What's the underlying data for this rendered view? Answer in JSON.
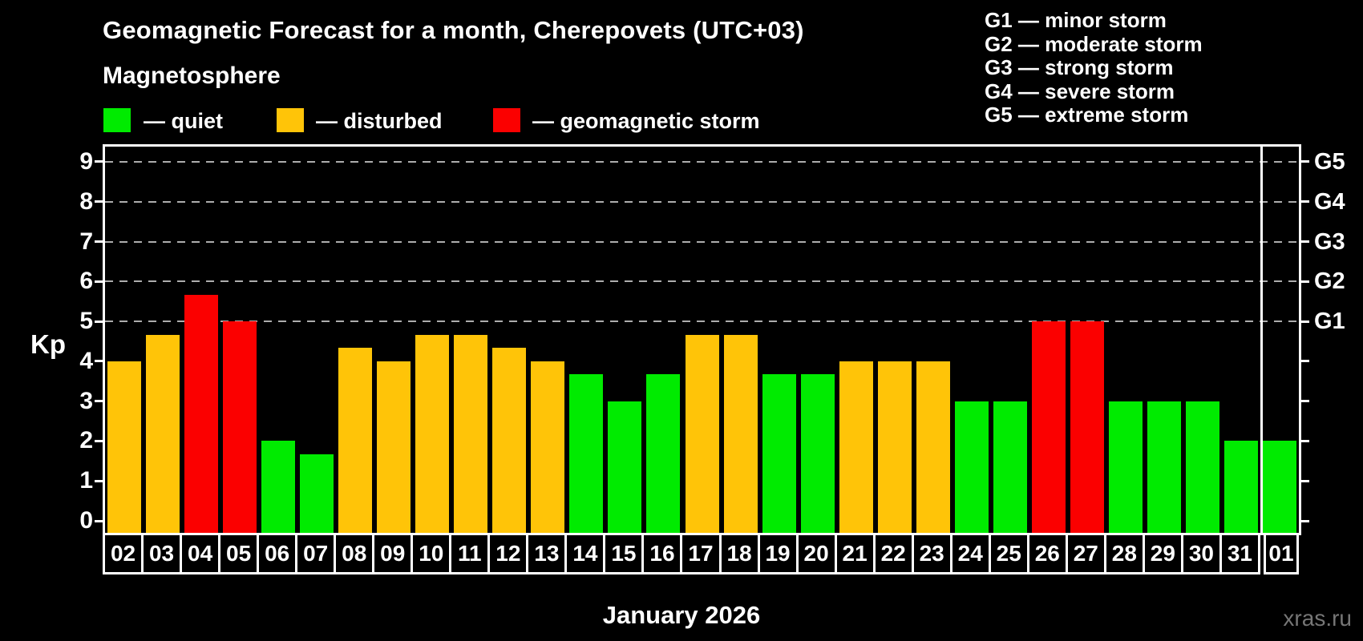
{
  "title": "Geomagnetic Forecast for a month, Cherepovets (UTC+03)",
  "subtitle": "Magnetosphere",
  "legend": {
    "quiet_label": "— quiet",
    "disturbed_label": "— disturbed",
    "storm_label": "— geomagnetic storm"
  },
  "g_scale_legend": [
    "G1 — minor storm",
    "G2 — moderate storm",
    "G3 — strong storm",
    "G4 — severe storm",
    "G5 — extreme storm"
  ],
  "axis": {
    "y_label": "Kp",
    "y_ticks": [
      0,
      1,
      2,
      3,
      4,
      5,
      6,
      7,
      8,
      9
    ],
    "right_labels": [
      {
        "kp": 5,
        "label": "G1"
      },
      {
        "kp": 6,
        "label": "G2"
      },
      {
        "kp": 7,
        "label": "G3"
      },
      {
        "kp": 8,
        "label": "G4"
      },
      {
        "kp": 9,
        "label": "G5"
      }
    ]
  },
  "x_label": "January 2026",
  "watermark": "xras.ru",
  "colors": {
    "quiet": "#00EB00",
    "disturbed": "#FFC408",
    "storm": "#FB0000",
    "grid": "#ADADAD",
    "text": "#FFFFFF",
    "watermark": "#767676",
    "background": "#000000"
  },
  "chart_data": {
    "type": "bar",
    "title": "Geomagnetic Forecast for a month, Cherepovets (UTC+03)",
    "xlabel": "January 2026",
    "ylabel": "Kp",
    "ylim": [
      0,
      9
    ],
    "grid": "dashed horizontal at Kp 5-9 only",
    "legend_position": "top-left",
    "month_separator_after_index": 29,
    "categories": [
      "02",
      "03",
      "04",
      "05",
      "06",
      "07",
      "08",
      "09",
      "10",
      "11",
      "12",
      "13",
      "14",
      "15",
      "16",
      "17",
      "18",
      "19",
      "20",
      "21",
      "22",
      "23",
      "24",
      "25",
      "26",
      "27",
      "28",
      "29",
      "30",
      "31",
      "01"
    ],
    "values": [
      4,
      4.67,
      5.67,
      5,
      2,
      1.67,
      4.33,
      4,
      4.67,
      4.67,
      4.33,
      4,
      3.67,
      3,
      3.67,
      4.67,
      4.67,
      3.67,
      3.67,
      4,
      4,
      4,
      3,
      3,
      5,
      5,
      3,
      3,
      3,
      2,
      2
    ],
    "status": [
      "disturbed",
      "disturbed",
      "storm",
      "storm",
      "quiet",
      "quiet",
      "disturbed",
      "disturbed",
      "disturbed",
      "disturbed",
      "disturbed",
      "disturbed",
      "quiet",
      "quiet",
      "quiet",
      "disturbed",
      "disturbed",
      "quiet",
      "quiet",
      "disturbed",
      "disturbed",
      "disturbed",
      "quiet",
      "quiet",
      "storm",
      "storm",
      "quiet",
      "quiet",
      "quiet",
      "quiet",
      "quiet"
    ]
  }
}
